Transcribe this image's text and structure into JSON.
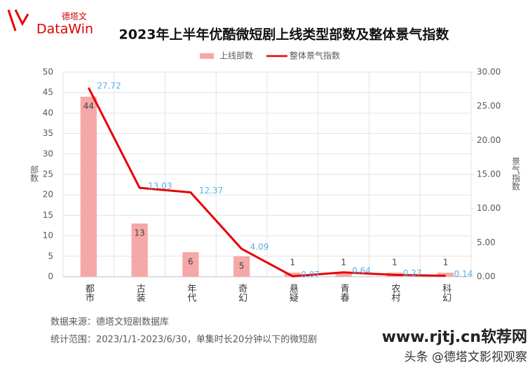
{
  "logo": {
    "name": "德塔文",
    "brand": "DataWin"
  },
  "chart_data": {
    "type": "combo",
    "title": "2023年上半年优酷微短剧上线类型部数及整体景气指数",
    "categories": [
      "都市",
      "古装",
      "年代",
      "奇幻",
      "悬疑",
      "青春",
      "农村",
      "科幻"
    ],
    "series": [
      {
        "name": "上线部数",
        "type": "bar",
        "color": "#f6a8a8",
        "values": [
          44,
          13,
          6,
          5,
          1,
          1,
          1,
          1
        ]
      },
      {
        "name": "整体景气指数",
        "type": "line",
        "axis": "y2",
        "color": "#e60000",
        "values": [
          27.72,
          13.03,
          12.37,
          4.09,
          0.07,
          0.64,
          0.27,
          0.14
        ]
      }
    ],
    "ylabel": "部数",
    "y2label": "景气指数",
    "ylim": [
      0,
      50
    ],
    "yticks": [
      0,
      5,
      10,
      15,
      20,
      25,
      30,
      35,
      40,
      45,
      50
    ],
    "y2lim": [
      0,
      30
    ],
    "y2ticks": [
      {
        "value": 0,
        "label": "0.00"
      },
      {
        "value": 5,
        "label": "5.00"
      },
      {
        "value": 10,
        "label": "10.00"
      },
      {
        "value": 15,
        "label": "15.00"
      },
      {
        "value": 20,
        "label": "20.00"
      },
      {
        "value": 25,
        "label": "25.00"
      },
      {
        "value": 30,
        "label": "30.00"
      }
    ],
    "grid": true,
    "legend": "top"
  },
  "notes": [
    "数据来源：德塔文短剧数据库",
    "统计范围：2023/1/1-2023/6/30，单集时长20分钟以下的微短剧"
  ],
  "watermarks": [
    "www.rjtj.cn软荐网",
    "头条 @德塔文影视观察"
  ]
}
